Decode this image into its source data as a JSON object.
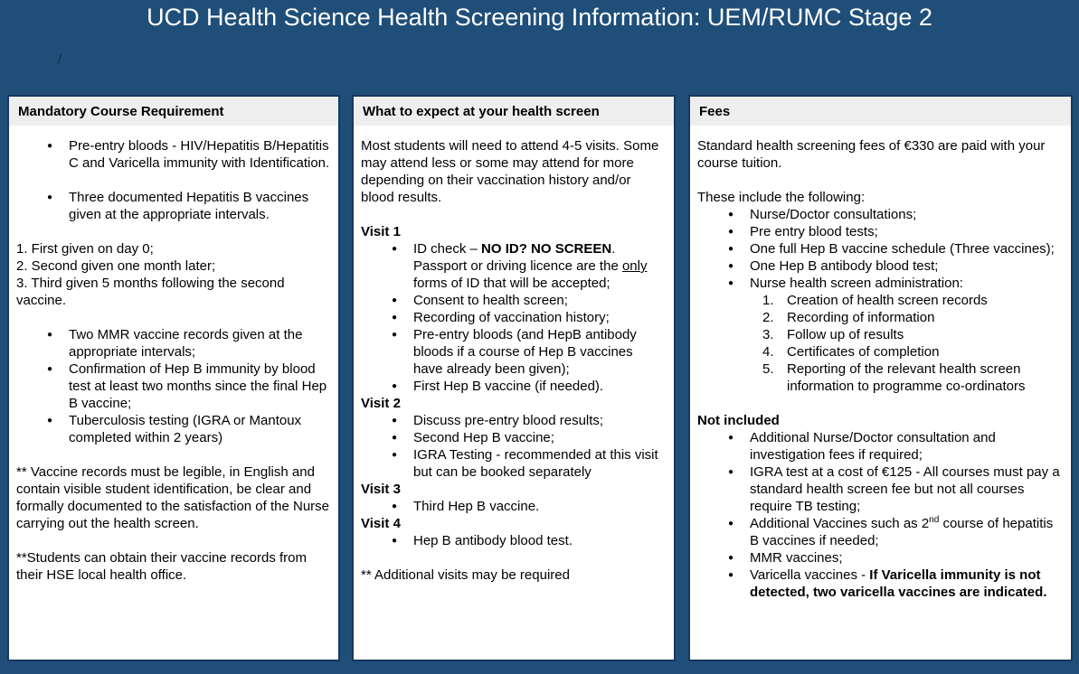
{
  "page": {
    "title": "UCD Health Science Health Screening Information: UEM/RUMC Stage 2",
    "breadcrumb_slash": "/",
    "colors": {
      "background": "#1F4E79",
      "panel_border": "#17375E",
      "panel_header_bg": "#EEEEEE",
      "title_text": "#FFFFFF",
      "body_text": "#000000"
    }
  },
  "columns": [
    {
      "id": "mandatory-course-requirement",
      "header": "Mandatory Course Requirement",
      "blocks": [
        {
          "t": "ul",
          "items": [
            {
              "seg": [
                {
                  "text": "Pre-entry bloods - HIV/Hepatitis B/Hepatitis C and Varicella immunity with Identification."
                }
              ]
            },
            {
              "gap": true,
              "seg": [
                {
                  "text": "Three documented Hepatitis B vaccines given at the appropriate intervals."
                }
              ]
            }
          ]
        },
        {
          "t": "p",
          "gap": true,
          "seg": [
            {
              "text": "1. First given on day 0;"
            }
          ]
        },
        {
          "t": "p",
          "seg": [
            {
              "text": "2. Second given one month later;"
            }
          ]
        },
        {
          "t": "p",
          "seg": [
            {
              "text": "3. Third given 5 months following the second vaccine."
            }
          ]
        },
        {
          "t": "ul",
          "gap": true,
          "items": [
            {
              "seg": [
                {
                  "text": "Two MMR vaccine records given at the appropriate intervals;"
                }
              ]
            },
            {
              "seg": [
                {
                  "text": "Confirmation of Hep B immunity by blood test at least two months since the final Hep B vaccine;"
                }
              ]
            },
            {
              "seg": [
                {
                  "text": "Tuberculosis testing (IGRA or Mantoux completed within 2 years)"
                }
              ]
            }
          ]
        },
        {
          "t": "p",
          "gap": true,
          "seg": [
            {
              "text": "** Vaccine records must be legible, in English and contain visible student identification, be clear and formally documented to the satisfaction of the Nurse carrying out the health screen."
            }
          ]
        },
        {
          "t": "p",
          "gap": true,
          "seg": [
            {
              "text": "**Students can obtain their vaccine records from their HSE local health office."
            }
          ]
        }
      ]
    },
    {
      "id": "what-to-expect",
      "header": "What to expect at your health screen",
      "blocks": [
        {
          "t": "p",
          "seg": [
            {
              "text": "Most students will need to attend 4-5 visits. Some may attend less or some may attend for more depending on their vaccination history and/or blood results."
            }
          ]
        },
        {
          "t": "h",
          "gap": true,
          "seg": [
            {
              "text": "Visit 1"
            }
          ]
        },
        {
          "t": "ul",
          "items": [
            {
              "seg": [
                {
                  "text": "ID check – "
                },
                {
                  "text": "NO ID? NO SCREEN",
                  "bold": true
                },
                {
                  "text": ". Passport or driving licence are the "
                },
                {
                  "text": "only",
                  "underline": true
                },
                {
                  "text": " forms of ID that will be accepted;"
                }
              ]
            },
            {
              "seg": [
                {
                  "text": "Consent to health screen;"
                }
              ]
            },
            {
              "seg": [
                {
                  "text": "Recording of vaccination history;"
                }
              ]
            },
            {
              "seg": [
                {
                  "text": "Pre-entry bloods (and HepB antibody bloods if a course of Hep B vaccines have already been given);"
                }
              ]
            },
            {
              "seg": [
                {
                  "text": "First Hep B vaccine (if needed)."
                }
              ]
            }
          ]
        },
        {
          "t": "h",
          "seg": [
            {
              "text": "Visit 2"
            }
          ]
        },
        {
          "t": "ul",
          "items": [
            {
              "seg": [
                {
                  "text": "Discuss pre-entry blood results;"
                }
              ]
            },
            {
              "seg": [
                {
                  "text": "Second Hep B vaccine;"
                }
              ]
            },
            {
              "seg": [
                {
                  "text": "IGRA Testing - recommended at this visit but can be booked separately"
                }
              ]
            }
          ]
        },
        {
          "t": "h",
          "seg": [
            {
              "text": "Visit 3"
            }
          ]
        },
        {
          "t": "ul",
          "items": [
            {
              "seg": [
                {
                  "text": "Third Hep B vaccine."
                }
              ]
            }
          ]
        },
        {
          "t": "h",
          "seg": [
            {
              "text": "Visit 4"
            }
          ]
        },
        {
          "t": "ul",
          "items": [
            {
              "seg": [
                {
                  "text": "Hep B antibody blood test."
                }
              ]
            }
          ]
        },
        {
          "t": "p",
          "gap": true,
          "seg": [
            {
              "text": "** Additional visits may be required"
            }
          ]
        }
      ]
    },
    {
      "id": "fees",
      "header": "Fees",
      "blocks": [
        {
          "t": "p",
          "seg": [
            {
              "text": "Standard health screening fees of €330 are paid with your course tuition."
            }
          ]
        },
        {
          "t": "p",
          "gap": true,
          "seg": [
            {
              "text": "These include the following:"
            }
          ]
        },
        {
          "t": "ul",
          "items": [
            {
              "seg": [
                {
                  "text": "Nurse/Doctor consultations;"
                }
              ]
            },
            {
              "seg": [
                {
                  "text": "Pre entry blood tests;"
                }
              ]
            },
            {
              "seg": [
                {
                  "text": "One full Hep B vaccine schedule (Three vaccines);"
                }
              ]
            },
            {
              "seg": [
                {
                  "text": "One Hep B antibody blood test;"
                }
              ]
            },
            {
              "seg": [
                {
                  "text": "Nurse health screen administration:"
                }
              ],
              "sub": {
                "items": [
                  {
                    "seg": [
                      {
                        "text": "Creation of health screen records"
                      }
                    ]
                  },
                  {
                    "seg": [
                      {
                        "text": "Recording of information"
                      }
                    ]
                  },
                  {
                    "seg": [
                      {
                        "text": "Follow up of results"
                      }
                    ]
                  },
                  {
                    "seg": [
                      {
                        "text": "Certificates of completion"
                      }
                    ]
                  },
                  {
                    "seg": [
                      {
                        "text": "Reporting of the relevant health screen information to programme co-ordinators"
                      }
                    ]
                  }
                ]
              }
            }
          ]
        },
        {
          "t": "h",
          "gap": true,
          "seg": [
            {
              "text": "Not included"
            }
          ]
        },
        {
          "t": "ul",
          "items": [
            {
              "seg": [
                {
                  "text": "Additional Nurse/Doctor consultation and investigation fees if required;"
                }
              ]
            },
            {
              "seg": [
                {
                  "text": "IGRA test at a cost of €125 - All courses must pay a standard health screen fee but not all courses require TB testing;"
                }
              ]
            },
            {
              "seg": [
                {
                  "text": "Additional Vaccines such as 2"
                },
                {
                  "text": "nd",
                  "sup": true
                },
                {
                  "text": " course of hepatitis B vaccines if needed;"
                }
              ]
            },
            {
              "seg": [
                {
                  "text": "MMR vaccines;"
                }
              ]
            },
            {
              "seg": [
                {
                  "text": "Varicella vaccines - "
                },
                {
                  "text": "If Varicella immunity is not detected, two varicella vaccines are indicated.",
                  "bold": true
                }
              ]
            }
          ]
        }
      ]
    }
  ]
}
